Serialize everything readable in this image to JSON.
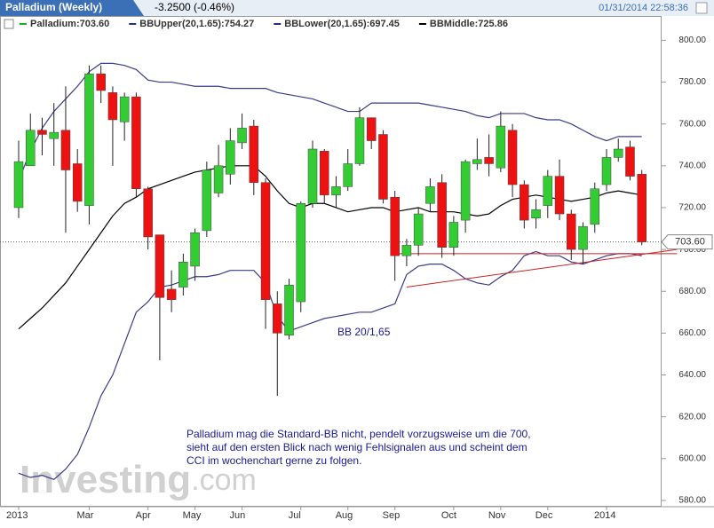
{
  "header": {
    "tab": "Palladium (Weekly)",
    "change": "-3.2500 (-0.46%)",
    "timestamp": "01/31/2014 22:58:36"
  },
  "chart_data": {
    "type": "candlestick",
    "legend": [
      {
        "text": "Palladium:703.60",
        "color": "#22aa22"
      },
      {
        "text": "BBUpper(20,1.65):754.27",
        "color": "#2a2a7a"
      },
      {
        "text": "BBLower(20,1.65):697.45",
        "color": "#2a2a7a"
      },
      {
        "text": "BBMiddle:725.86",
        "color": "#000000"
      }
    ],
    "categories": [
      "2013",
      null,
      null,
      null,
      null,
      null,
      "Mar",
      null,
      null,
      null,
      null,
      "Apr",
      null,
      null,
      null,
      "May",
      null,
      null,
      null,
      "Jun",
      null,
      null,
      null,
      null,
      "Jul",
      null,
      null,
      null,
      "Aug",
      null,
      null,
      null,
      "Sep",
      null,
      null,
      null,
      null,
      "Oct",
      null,
      null,
      null,
      "Nov",
      null,
      null,
      null,
      "Dec",
      null,
      null,
      null,
      null,
      "2014",
      null,
      null,
      null
    ],
    "ohlc": [
      [
        720,
        752,
        715,
        742
      ],
      [
        740,
        765,
        740,
        757
      ],
      [
        757,
        763,
        745,
        755
      ],
      [
        753,
        770,
        740,
        756
      ],
      [
        757,
        778,
        708,
        738
      ],
      [
        741,
        748,
        718,
        723
      ],
      [
        721,
        788,
        712,
        784
      ],
      [
        784,
        788,
        770,
        776
      ],
      [
        775,
        778,
        740,
        762
      ],
      [
        761,
        775,
        752,
        773
      ],
      [
        773,
        775,
        725,
        729
      ],
      [
        729,
        730,
        700,
        706
      ],
      [
        707,
        707,
        647,
        677
      ],
      [
        681,
        690,
        670,
        676
      ],
      [
        682,
        698,
        678,
        694
      ],
      [
        692,
        710,
        685,
        708
      ],
      [
        709,
        742,
        706,
        738
      ],
      [
        727,
        750,
        725,
        740
      ],
      [
        736,
        758,
        731,
        752
      ],
      [
        751,
        765,
        748,
        758
      ],
      [
        759,
        762,
        726,
        732
      ],
      [
        732,
        734,
        662,
        676
      ],
      [
        674,
        680,
        630,
        660
      ],
      [
        659,
        686,
        657,
        683
      ],
      [
        675,
        723,
        670,
        722
      ],
      [
        722,
        752,
        720,
        748
      ],
      [
        747,
        748,
        722,
        726
      ],
      [
        726,
        735,
        720,
        730
      ],
      [
        730,
        748,
        728,
        741
      ],
      [
        741,
        768,
        740,
        763
      ],
      [
        763,
        763,
        748,
        752
      ],
      [
        755,
        757,
        722,
        724
      ],
      [
        725,
        728,
        685,
        697
      ],
      [
        697,
        705,
        692,
        702
      ],
      [
        702,
        720,
        697,
        717
      ],
      [
        722,
        734,
        718,
        730
      ],
      [
        732,
        736,
        696,
        701
      ],
      [
        701,
        716,
        697,
        713
      ],
      [
        714,
        743,
        708,
        742
      ],
      [
        741,
        753,
        738,
        743
      ],
      [
        744,
        755,
        735,
        741
      ],
      [
        739,
        766,
        737,
        759
      ],
      [
        757,
        760,
        725,
        731
      ],
      [
        731,
        733,
        710,
        714
      ],
      [
        715,
        724,
        710,
        719
      ],
      [
        721,
        738,
        715,
        735
      ],
      [
        735,
        743,
        714,
        717
      ],
      [
        717,
        719,
        695,
        700
      ],
      [
        700,
        713,
        693,
        711
      ],
      [
        712,
        732,
        708,
        729
      ],
      [
        731,
        748,
        728,
        744
      ],
      [
        744,
        753,
        742,
        748
      ],
      [
        749,
        752,
        733,
        735
      ],
      [
        736,
        738,
        702,
        703.6
      ]
    ],
    "up_color": "#33cc33",
    "down_color": "#ee1111",
    "series": [
      {
        "name": "BBUpper",
        "color": "#3a3a8a",
        "values": [
          733,
          747,
          758,
          766,
          772,
          778,
          785,
          789,
          789,
          788,
          786,
          781,
          780,
          780,
          779,
          778,
          778,
          778,
          777,
          777,
          777,
          777,
          775,
          774,
          773,
          772,
          770,
          768,
          766,
          766,
          770,
          770,
          770,
          770,
          770,
          769,
          768,
          767,
          766,
          764,
          763,
          765,
          765,
          765,
          763,
          762,
          762,
          760,
          757,
          754,
          752,
          754,
          754,
          754
        ]
      },
      {
        "name": "BBMiddle",
        "color": "#000000",
        "values": [
          662,
          667,
          672,
          678,
          684,
          692,
          700,
          708,
          716,
          722,
          725,
          729,
          731,
          733,
          735,
          737,
          738,
          739,
          740,
          740,
          740,
          735,
          728,
          722,
          720,
          722,
          722,
          720,
          718,
          719,
          720,
          720,
          718,
          719,
          720,
          718,
          718,
          718,
          717,
          716,
          717,
          721,
          724,
          725,
          726,
          725,
          724,
          723,
          724,
          725,
          727,
          728,
          727,
          726
        ]
      },
      {
        "name": "BBLower",
        "color": "#3a3a8a",
        "values": [
          593,
          591,
          592,
          590,
          595,
          602,
          615,
          630,
          640,
          655,
          670,
          675,
          682,
          683,
          685,
          687,
          687,
          688,
          690,
          690,
          690,
          684,
          668,
          661,
          663,
          665,
          667,
          668,
          669,
          670,
          670,
          672,
          674,
          688,
          692,
          693,
          693,
          690,
          686,
          684,
          683,
          687,
          690,
          697,
          699,
          697,
          697,
          694,
          693,
          695,
          697,
          698,
          698,
          697
        ]
      }
    ],
    "trendlines": [
      {
        "color": "#cc2222",
        "x": [
          32,
          56
        ],
        "y": [
          698,
          698
        ]
      },
      {
        "color": "#cc2222",
        "x": [
          33,
          56
        ],
        "y": [
          682,
          700
        ]
      }
    ],
    "last": 703.6,
    "last_label": "703.60",
    "annotations": [
      "BB 20/1,65",
      "Palladium mag die Standard-BB nicht, pendelt vorzugsweise um die 700,",
      "sieht auf den ersten Blick nach wenig Fehlsignalen aus und scheint dem",
      "CCI im wochenchart gerne zu folgen."
    ],
    "watermark": [
      "Investing",
      ".com"
    ],
    "ylim": [
      577,
      804
    ],
    "yticks": [
      {
        "value": 580,
        "label": "580.00"
      },
      {
        "value": 600,
        "label": "600.00"
      },
      {
        "value": 620,
        "label": "620.00"
      },
      {
        "value": 640,
        "label": "640.00"
      },
      {
        "value": 660,
        "label": "660.00"
      },
      {
        "value": 680,
        "label": "680.00"
      },
      {
        "value": 700,
        "label": "700.00"
      },
      {
        "value": 720,
        "label": "720.00"
      },
      {
        "value": 740,
        "label": "740.00"
      },
      {
        "value": 760,
        "label": "760.00"
      },
      {
        "value": 780,
        "label": "780.00"
      },
      {
        "value": 800,
        "label": "800.00"
      }
    ]
  }
}
